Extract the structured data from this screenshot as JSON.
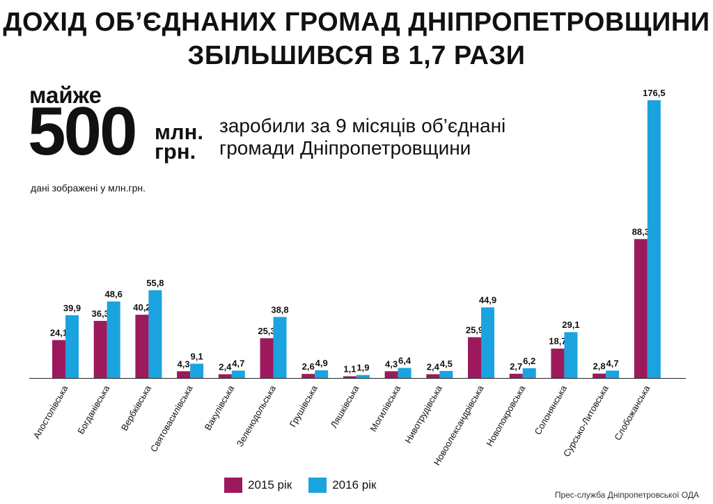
{
  "header": {
    "title_line1": "ДОХІД ОБ’ЄДНАНИХ ГРОМАД ДНІПРОПЕТРОВЩИНИ",
    "title_line2": "ЗБІЛЬШИВСЯ В 1,7 РАЗИ"
  },
  "highlight": {
    "prefix": "майже",
    "number": "500",
    "unit_line1": "млн.",
    "unit_line2": "грн.",
    "desc_line1": "заробили за 9 місяців об’єднані",
    "desc_line2": "громади Дніпропетровщини"
  },
  "note": "дані зображені у млн.грн.",
  "source": "Прес-служба Дніпропетровської ОДА",
  "colors": {
    "s2015": "#9c1a5c",
    "s2016": "#1ba3e0"
  },
  "chart_data": {
    "type": "bar",
    "categories": [
      "Апостолівська",
      "Богданівська",
      "Вербківська",
      "Святовасилівська",
      "Вакулівська",
      "Зеленодольська",
      "Грушівська",
      "Ляшківська",
      "Могилівська",
      "Нивотрудівська",
      "Новоолександрівська",
      "Новопокровська",
      "Солонянська",
      "Сурсько-Литовська",
      "Слобожанська"
    ],
    "series": [
      {
        "name": "2015 рік",
        "values": [
          24.1,
          36.3,
          40.2,
          4.3,
          2.4,
          25.3,
          2.6,
          1.1,
          4.3,
          2.4,
          25.9,
          2.7,
          18.7,
          2.8,
          88.3
        ],
        "labels": [
          "24,1",
          "36,3",
          "40,2",
          "4,3",
          "2,4",
          "25,3",
          "2,6",
          "1,1",
          "4,3",
          "2,4",
          "25,9",
          "2,7",
          "18,7",
          "2,8",
          "88,3"
        ]
      },
      {
        "name": "2016 рік",
        "values": [
          39.9,
          48.6,
          55.8,
          9.1,
          4.7,
          38.8,
          4.9,
          1.9,
          6.4,
          4.5,
          44.9,
          6.2,
          29.1,
          4.7,
          176.5
        ],
        "labels": [
          "39,9",
          "48,6",
          "55,8",
          "9,1",
          "4,7",
          "38,8",
          "4,9",
          "1,9",
          "6,4",
          "4,5",
          "44,9",
          "6,2",
          "29,1",
          "4,7",
          "176,5"
        ]
      }
    ],
    "ylim": [
      0,
      176.5
    ],
    "grid": false,
    "legend": "bottom-center"
  }
}
